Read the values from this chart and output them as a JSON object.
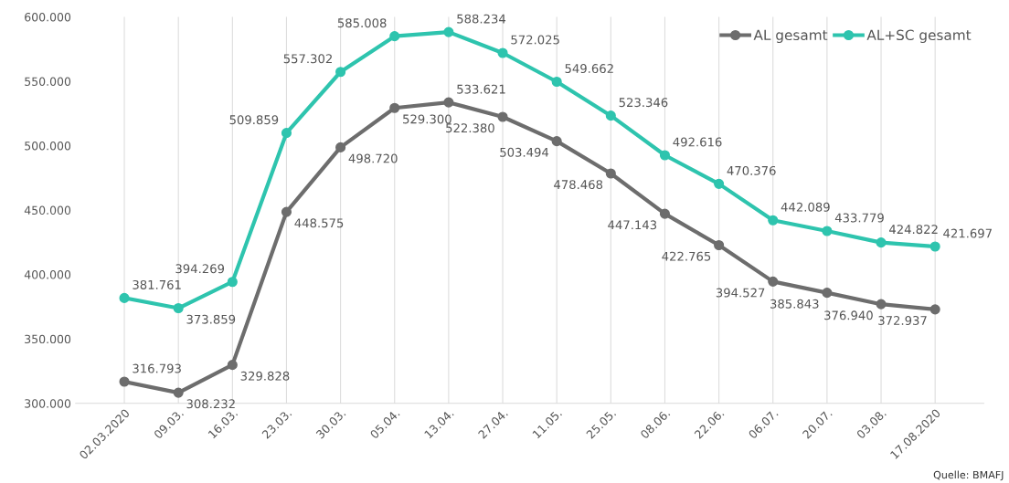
{
  "chart_data": {
    "type": "line",
    "categories": [
      "02.03.2020",
      "09.03.",
      "16.03.",
      "23.03.",
      "30.03.",
      "05.04.",
      "13.04.",
      "27.04.",
      "11.05.",
      "25.05.",
      "08.06.",
      "22.06.",
      "06.07.",
      "20.07.",
      "03.08.",
      "17.08.2020"
    ],
    "series": [
      {
        "name": "AL gesamt",
        "color": "#6d6d6d",
        "values": [
          316793,
          308232,
          329828,
          448575,
          498720,
          529300,
          533621,
          522380,
          503494,
          478468,
          447143,
          422765,
          394527,
          385843,
          376940,
          372937
        ],
        "value_labels": [
          "316.793",
          "308.232",
          "329.828",
          "448.575",
          "498.720",
          "529.300",
          "533.621",
          "522.380",
          "503.494",
          "478.468",
          "447.143",
          "422.765",
          "394.527",
          "385.843",
          "376.940",
          "372.937"
        ]
      },
      {
        "name": "AL+SC gesamt",
        "color": "#2ec4ae",
        "values": [
          381761,
          373859,
          394269,
          509859,
          557302,
          585008,
          588234,
          572025,
          549662,
          523346,
          492616,
          470376,
          442089,
          433779,
          424822,
          421697
        ],
        "value_labels": [
          "381.761",
          "373.859",
          "394.269",
          "509.859",
          "557.302",
          "585.008",
          "588.234",
          "572.025",
          "549.662",
          "523.346",
          "492.616",
          "470.376",
          "442.089",
          "433.779",
          "424.822",
          "421.697"
        ]
      }
    ],
    "ylim": [
      300000,
      600000
    ],
    "yticks": [
      {
        "value": 300000,
        "label": "300.000"
      },
      {
        "value": 350000,
        "label": "350.000"
      },
      {
        "value": 400000,
        "label": "400.000"
      },
      {
        "value": 450000,
        "label": "450.000"
      },
      {
        "value": 500000,
        "label": "500.000"
      },
      {
        "value": 550000,
        "label": "550.000"
      },
      {
        "value": 600000,
        "label": "600.000"
      }
    ],
    "grid": "x",
    "legend": "top right",
    "marker": "circle",
    "line_style": "solid",
    "annotations": [
      "Quelle: BMAFJ"
    ]
  }
}
